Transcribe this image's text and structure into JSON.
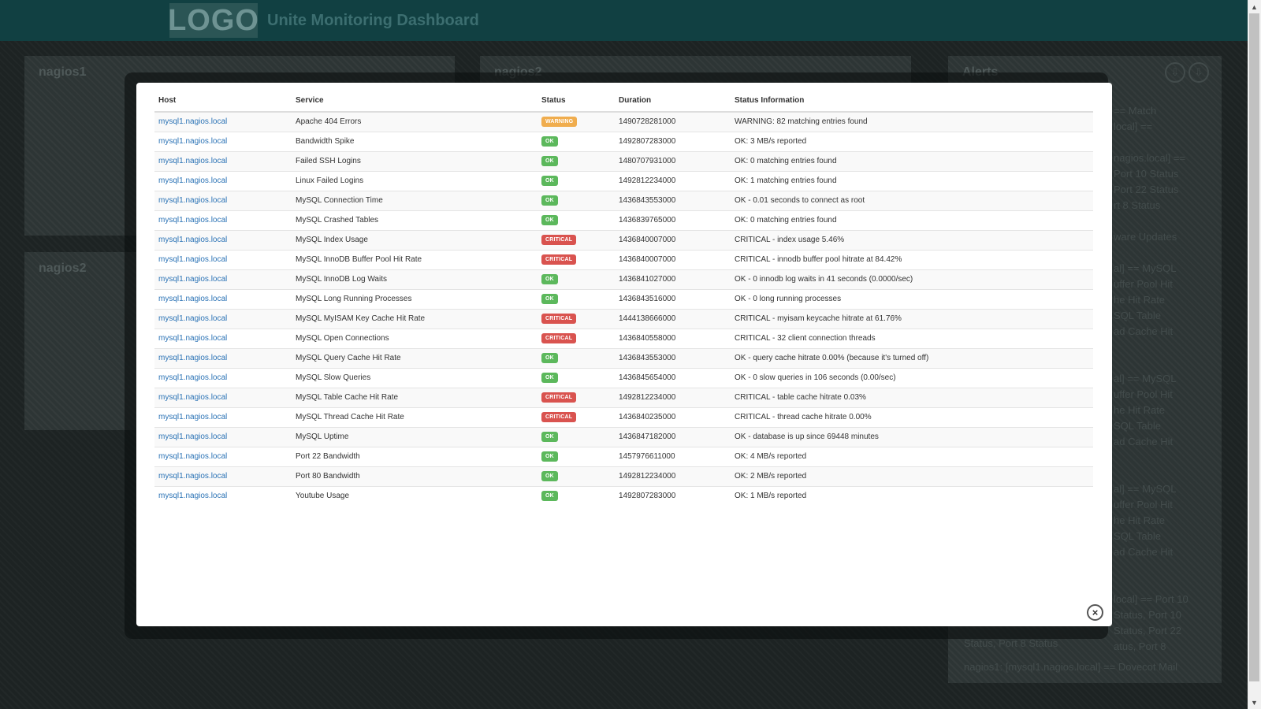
{
  "app": {
    "logo_text": "LOGO",
    "title": "Unite Monitoring Dashboard"
  },
  "background": {
    "panel_nagios1_title": "nagios1",
    "panel_nagios2_title": "nagios2",
    "panel_middle_title": "nagios2",
    "panel_alerts_title": "Alerts",
    "alerts_action_icons": [
      "arrow-down-circle-icon",
      "arrow-down-circle-icon"
    ],
    "alert_fragments": [
      "== Match",
      "local] ==",
      "",
      "nagios.local] ==",
      "Port 10 Status",
      "Port 22 Status",
      "rt 8 Status",
      "",
      "ware Updates",
      "",
      "al] == MySQL",
      "uffer Pool Hit",
      "he Hit Rate",
      "SQL Table",
      "ad Cache Hit",
      "",
      "",
      "al] == MySQL",
      "uffer Pool Hit",
      "he Hit Rate",
      "SQL Table",
      "ad Cache Hit",
      "",
      "",
      "al] == MySQL",
      "uffer Pool Hit",
      "he Hit Rate",
      "SQL Table",
      "ad Cache Hit",
      "",
      "",
      "local] == Port 10",
      "Status, Port 10",
      "Status, Port 22",
      "atus, Port 8"
    ],
    "alert_bottom_1": "Status, Port 8 Status",
    "alert_bottom_2": "nagios1: [mysql1.nagios.local] == Dovecot Mail"
  },
  "modal": {
    "columns": {
      "host": "Host",
      "service": "Service",
      "status": "Status",
      "duration": "Duration",
      "info": "Status Information"
    },
    "rows": [
      {
        "host": "mysql1.nagios.local",
        "service": "Apache 404 Errors",
        "status": "WARNING",
        "duration": "1490728281000",
        "info": "WARNING: 82 matching entries found"
      },
      {
        "host": "mysql1.nagios.local",
        "service": "Bandwidth Spike",
        "status": "OK",
        "duration": "1492807283000",
        "info": "OK: 3 MB/s reported"
      },
      {
        "host": "mysql1.nagios.local",
        "service": "Failed SSH Logins",
        "status": "OK",
        "duration": "1480707931000",
        "info": "OK: 0 matching entries found"
      },
      {
        "host": "mysql1.nagios.local",
        "service": "Linux Failed Logins",
        "status": "OK",
        "duration": "1492812234000",
        "info": "OK: 1 matching entries found"
      },
      {
        "host": "mysql1.nagios.local",
        "service": "MySQL Connection Time",
        "status": "OK",
        "duration": "1436843553000",
        "info": "OK - 0.01 seconds to connect as root"
      },
      {
        "host": "mysql1.nagios.local",
        "service": "MySQL Crashed Tables",
        "status": "OK",
        "duration": "1436839765000",
        "info": "OK: 0 matching entries found"
      },
      {
        "host": "mysql1.nagios.local",
        "service": "MySQL Index Usage",
        "status": "CRITICAL",
        "duration": "1436840007000",
        "info": "CRITICAL - index usage 5.46%"
      },
      {
        "host": "mysql1.nagios.local",
        "service": "MySQL InnoDB Buffer Pool Hit Rate",
        "status": "CRITICAL",
        "duration": "1436840007000",
        "info": "CRITICAL - innodb buffer pool hitrate at 84.42%"
      },
      {
        "host": "mysql1.nagios.local",
        "service": "MySQL InnoDB Log Waits",
        "status": "OK",
        "duration": "1436841027000",
        "info": "OK - 0 innodb log waits in 41 seconds (0.0000/sec)"
      },
      {
        "host": "mysql1.nagios.local",
        "service": "MySQL Long Running Processes",
        "status": "OK",
        "duration": "1436843516000",
        "info": "OK - 0 long running processes"
      },
      {
        "host": "mysql1.nagios.local",
        "service": "MySQL MyISAM Key Cache Hit Rate",
        "status": "CRITICAL",
        "duration": "1444138666000",
        "info": "CRITICAL - myisam keycache hitrate at 61.76%"
      },
      {
        "host": "mysql1.nagios.local",
        "service": "MySQL Open Connections",
        "status": "CRITICAL",
        "duration": "1436840558000",
        "info": "CRITICAL - 32 client connection threads"
      },
      {
        "host": "mysql1.nagios.local",
        "service": "MySQL Query Cache Hit Rate",
        "status": "OK",
        "duration": "1436843553000",
        "info": "OK - query cache hitrate 0.00% (because it's turned off)"
      },
      {
        "host": "mysql1.nagios.local",
        "service": "MySQL Slow Queries",
        "status": "OK",
        "duration": "1436845654000",
        "info": "OK - 0 slow queries in 106 seconds (0.00/sec)"
      },
      {
        "host": "mysql1.nagios.local",
        "service": "MySQL Table Cache Hit Rate",
        "status": "CRITICAL",
        "duration": "1492812234000",
        "info": "CRITICAL - table cache hitrate 0.03%"
      },
      {
        "host": "mysql1.nagios.local",
        "service": "MySQL Thread Cache Hit Rate",
        "status": "CRITICAL",
        "duration": "1436840235000",
        "info": "CRITICAL - thread cache hitrate 0.00%"
      },
      {
        "host": "mysql1.nagios.local",
        "service": "MySQL Uptime",
        "status": "OK",
        "duration": "1436847182000",
        "info": "OK - database is up since 69448 minutes"
      },
      {
        "host": "mysql1.nagios.local",
        "service": "Port 22 Bandwidth",
        "status": "OK",
        "duration": "1457976611000",
        "info": "OK: 4 MB/s reported"
      },
      {
        "host": "mysql1.nagios.local",
        "service": "Port 80 Bandwidth",
        "status": "OK",
        "duration": "1492812234000",
        "info": "OK: 2 MB/s reported"
      },
      {
        "host": "mysql1.nagios.local",
        "service": "Youtube Usage",
        "status": "OK",
        "duration": "1492807283000",
        "info": "OK: 1 MB/s reported"
      }
    ],
    "close_icon": "close-icon",
    "close_glyph": "×"
  },
  "scrollbar": {
    "up_glyph": "▲",
    "down_glyph": "▼"
  },
  "colors": {
    "ok": "#5cb85c",
    "critical": "#d9534f",
    "warning": "#f0ad4e",
    "link": "#2a72b5",
    "topbar": "#114042"
  }
}
